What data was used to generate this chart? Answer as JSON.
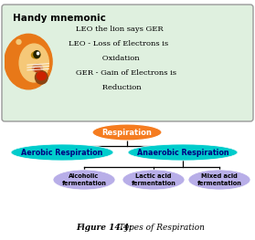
{
  "mnemonic_title": "Handy mnemonic",
  "mnemonic_lines": [
    "   LEO the lion says GER",
    "LEO - Loss of Electrons is",
    "              Oxidation",
    "   GER - Gain of Electrons is",
    "              Reduction"
  ],
  "mnemonic_bg": "#dff0df",
  "mnemonic_border": "#999999",
  "respiration_label": "Respiration",
  "respiration_color": "#f57c20",
  "respiration_text_color": "#ffffff",
  "aerobic_label": "Aerobic Respiration",
  "aerobic_color": "#00cccc",
  "aerobic_text_color": "#000080",
  "anaerobic_label": "Anaerobic Respiration",
  "anaerobic_color": "#00cccc",
  "anaerobic_text_color": "#000080",
  "sub_labels": [
    "Alcoholic\nfermentation",
    "Lactic acid\nfermentation",
    "Mixed acid\nfermentation"
  ],
  "sub_color": "#b8aee8",
  "sub_text_color": "#000000",
  "line_color": "#000000",
  "bg_color": "#ffffff",
  "fig_label_bold": "Figure 14.4:",
  "fig_label_rest": " Types of Respiration",
  "lion_mane_color": "#e87818",
  "lion_face_color": "#f5c878",
  "lion_nose_color": "#c04010"
}
